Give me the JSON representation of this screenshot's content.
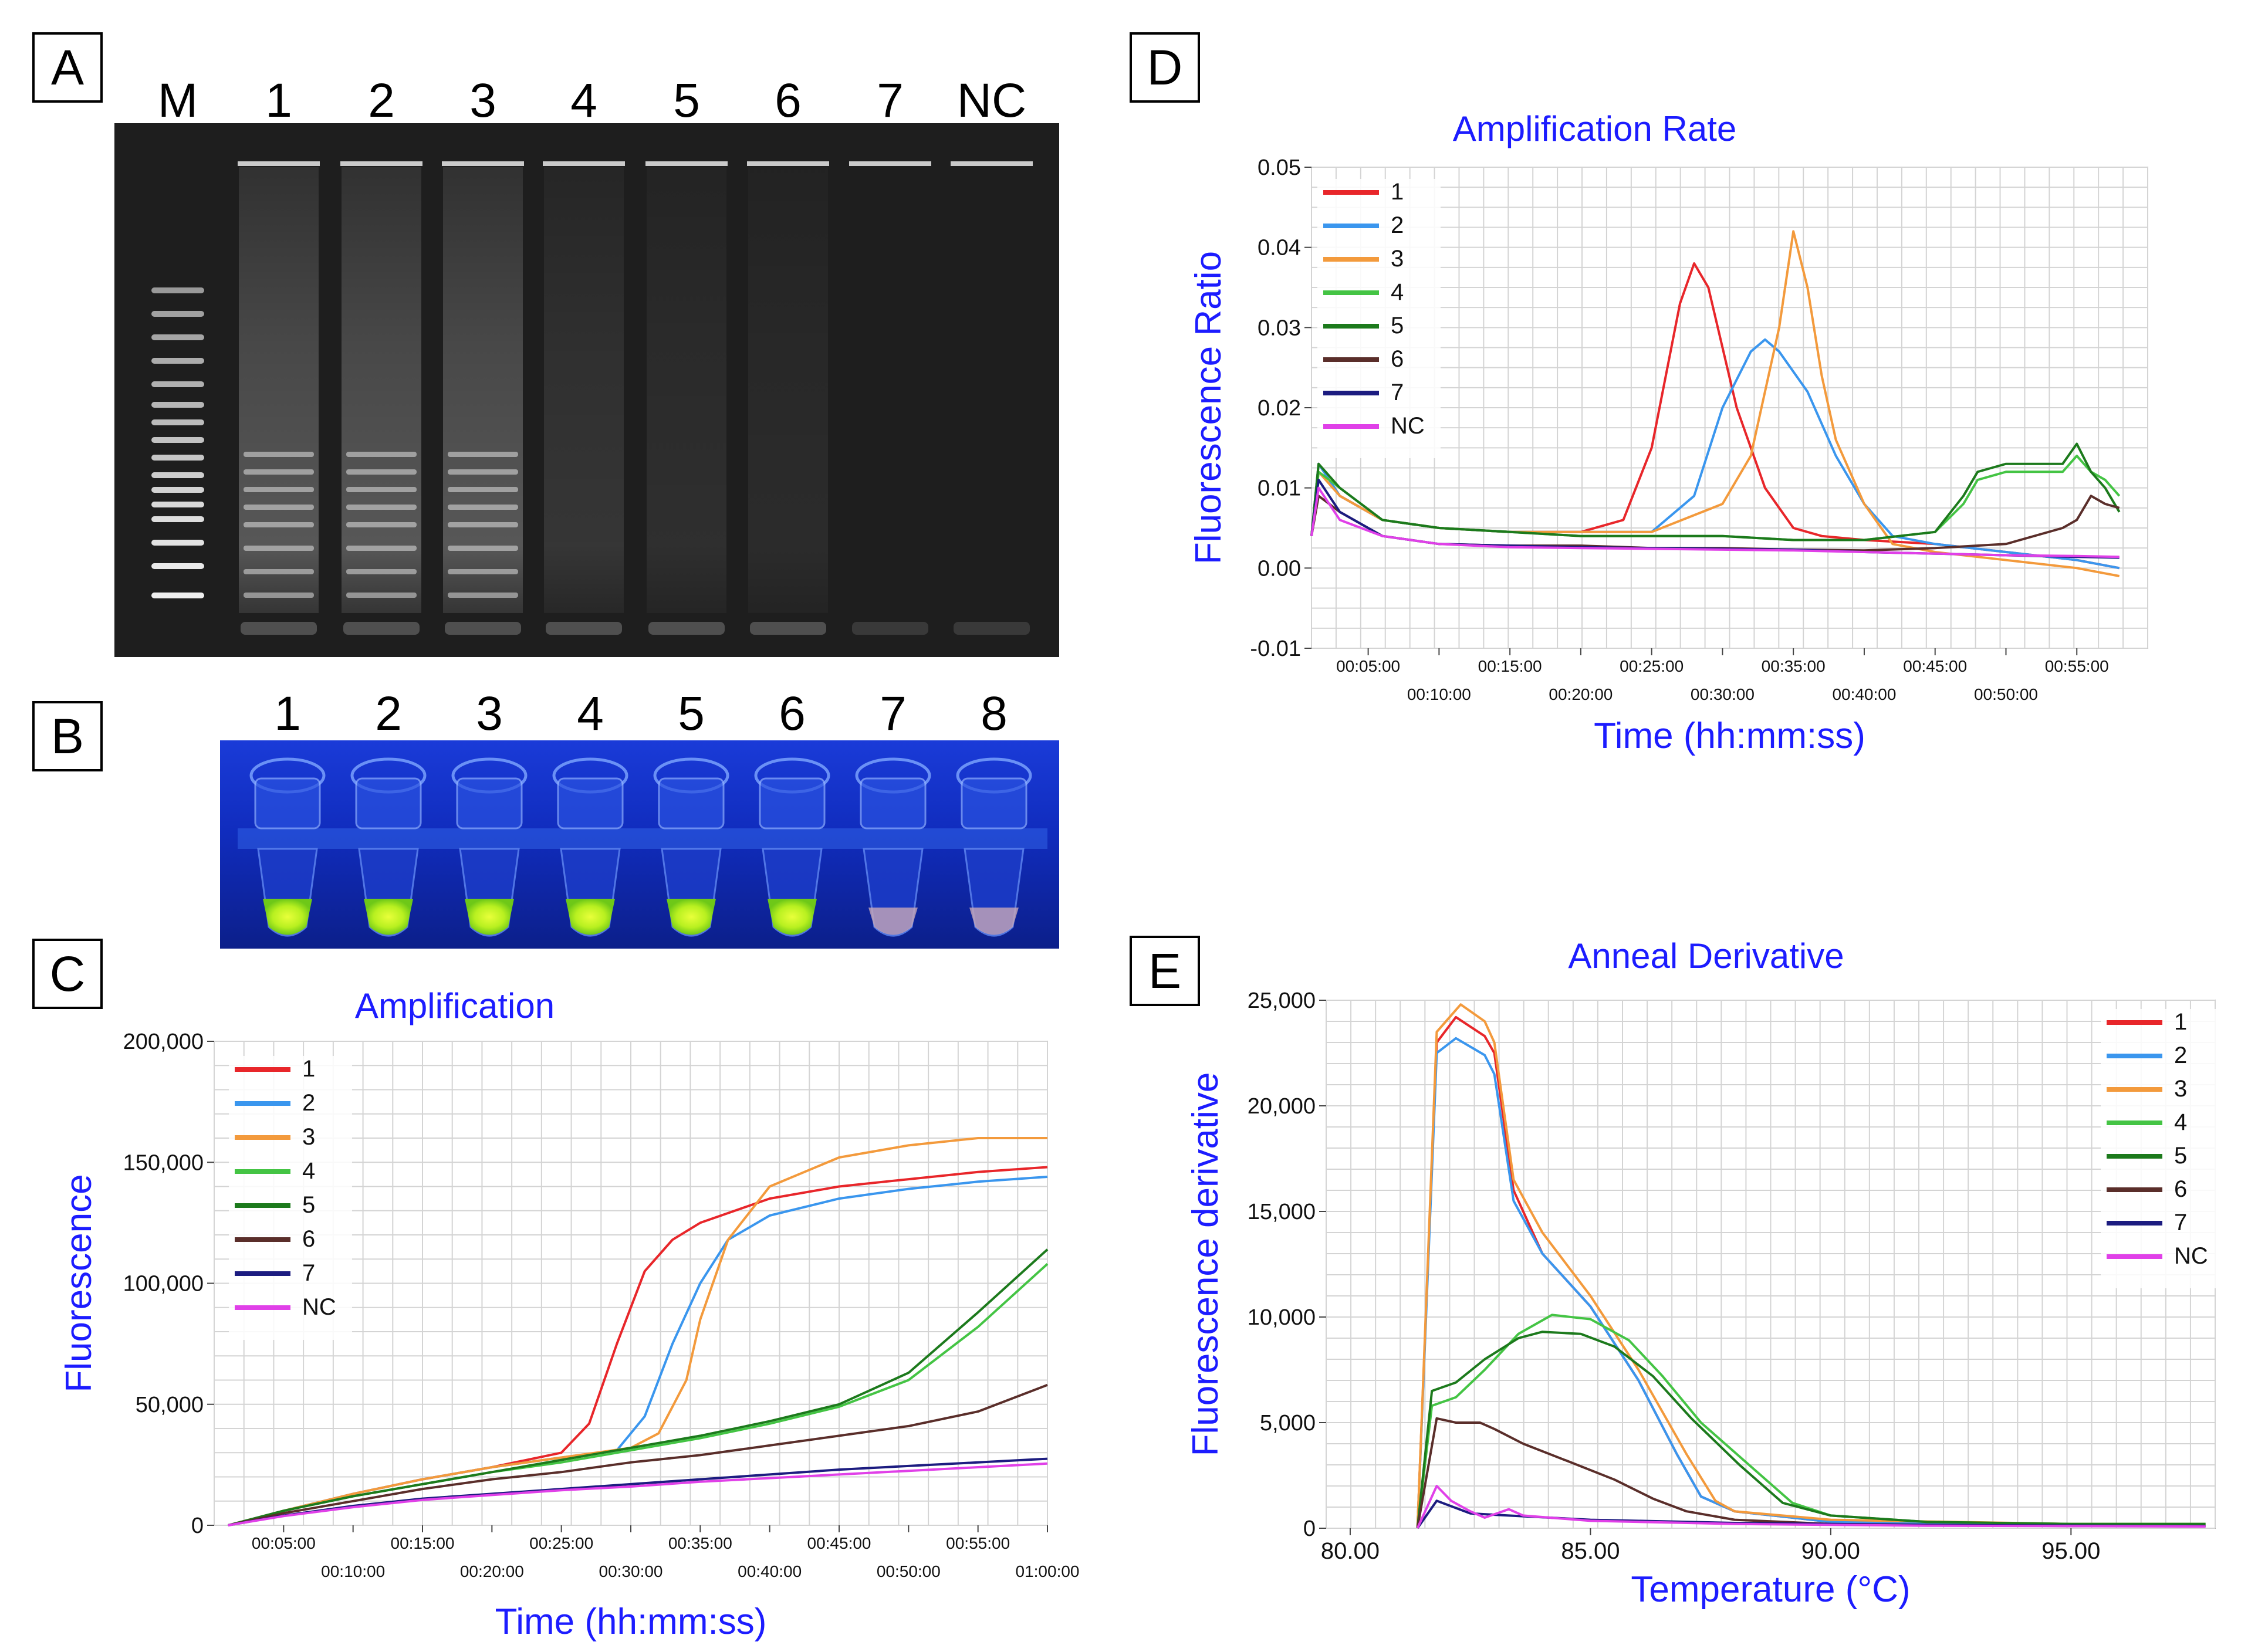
{
  "panels": {
    "a": "A",
    "b": "B",
    "c": "C",
    "d": "D",
    "e": "E"
  },
  "gel": {
    "lanes": [
      "M",
      "1",
      "2",
      "3",
      "4",
      "5",
      "6",
      "7",
      "NC"
    ],
    "intensity": [
      1.0,
      0.85,
      0.85,
      0.85,
      0.35,
      0.25,
      0.2,
      0.0,
      0.0
    ]
  },
  "tubes": {
    "labels": [
      "1",
      "2",
      "3",
      "4",
      "5",
      "6",
      "7",
      "8"
    ],
    "positive": [
      true,
      true,
      true,
      true,
      true,
      true,
      false,
      false
    ]
  },
  "colors": {
    "1": "#e8262a",
    "2": "#3a96ee",
    "3": "#f39a3c",
    "4": "#44c444",
    "5": "#1c7a1c",
    "6": "#5a2e2a",
    "7": "#1c1c80",
    "NC": "#e040e8",
    "title": "#1c1cff"
  },
  "chart_data": [
    {
      "id": "C",
      "type": "line",
      "title": "Amplification",
      "xlabel": "Time (hh:mm:ss)",
      "ylabel": "Fluorescence",
      "xlim": [
        0,
        60
      ],
      "ylim": [
        0,
        200000
      ],
      "x_ticks_upper": [
        "00:05:00",
        "00:15:00",
        "00:25:00",
        "00:35:00",
        "00:45:00",
        "00:55:00"
      ],
      "x_ticks_lower": [
        "00:10:00",
        "00:20:00",
        "00:30:00",
        "00:40:00",
        "00:50:00",
        "01:00:00"
      ],
      "y_ticks": [
        "0",
        "50,000",
        "100,000",
        "150,000",
        "200,000"
      ],
      "legend": [
        "1",
        "2",
        "3",
        "4",
        "5",
        "6",
        "7",
        "NC"
      ],
      "series": [
        {
          "name": "1",
          "x": [
            1,
            5,
            10,
            15,
            20,
            25,
            27,
            29,
            31,
            33,
            35,
            40,
            45,
            50,
            55,
            60
          ],
          "y": [
            0,
            6000,
            13000,
            19000,
            24000,
            30000,
            42000,
            75000,
            105000,
            118000,
            125000,
            135000,
            140000,
            143000,
            146000,
            148000
          ]
        },
        {
          "name": "2",
          "x": [
            1,
            5,
            10,
            15,
            20,
            25,
            29,
            31,
            33,
            35,
            37,
            40,
            45,
            50,
            55,
            60
          ],
          "y": [
            0,
            6000,
            13000,
            19000,
            24000,
            28000,
            31000,
            45000,
            75000,
            100000,
            118000,
            128000,
            135000,
            139000,
            142000,
            144000
          ]
        },
        {
          "name": "3",
          "x": [
            1,
            5,
            10,
            15,
            20,
            25,
            30,
            32,
            34,
            35,
            37,
            40,
            45,
            50,
            55,
            60
          ],
          "y": [
            0,
            6000,
            13000,
            19000,
            24000,
            28000,
            32000,
            38000,
            60000,
            85000,
            118000,
            140000,
            152000,
            157000,
            160000,
            160000
          ]
        },
        {
          "name": "4",
          "x": [
            1,
            5,
            10,
            15,
            20,
            25,
            30,
            35,
            40,
            45,
            50,
            55,
            60
          ],
          "y": [
            0,
            6000,
            12000,
            17000,
            22000,
            26000,
            31000,
            36000,
            42000,
            49000,
            60000,
            82000,
            108000
          ]
        },
        {
          "name": "5",
          "x": [
            1,
            5,
            10,
            15,
            20,
            25,
            30,
            35,
            40,
            45,
            50,
            55,
            60
          ],
          "y": [
            0,
            6000,
            12000,
            17000,
            22000,
            27000,
            32000,
            37000,
            43000,
            50000,
            63000,
            88000,
            114000
          ]
        },
        {
          "name": "6",
          "x": [
            1,
            5,
            10,
            15,
            20,
            25,
            30,
            35,
            40,
            45,
            50,
            55,
            60
          ],
          "y": [
            0,
            5000,
            10000,
            15000,
            19000,
            22000,
            26000,
            29000,
            33000,
            37000,
            41000,
            47000,
            58000
          ]
        },
        {
          "name": "7",
          "x": [
            1,
            5,
            10,
            15,
            20,
            25,
            30,
            35,
            40,
            45,
            50,
            55,
            60
          ],
          "y": [
            0,
            4000,
            8000,
            11000,
            13000,
            15000,
            17000,
            19000,
            21000,
            23000,
            24500,
            26000,
            27500
          ]
        },
        {
          "name": "NC",
          "x": [
            1,
            5,
            10,
            15,
            20,
            25,
            30,
            35,
            40,
            45,
            50,
            55,
            60
          ],
          "y": [
            0,
            3800,
            7500,
            10500,
            12500,
            14500,
            16000,
            18000,
            19500,
            21000,
            22500,
            24000,
            25500
          ]
        }
      ]
    },
    {
      "id": "D",
      "type": "line",
      "title": "Amplification Rate",
      "xlabel": "Time (hh:mm:ss)",
      "ylabel": "Fluorescence Ratio",
      "xlim": [
        1,
        60
      ],
      "ylim": [
        -0.01,
        0.05
      ],
      "x_ticks_upper": [
        "00:05:00",
        "00:15:00",
        "00:25:00",
        "00:35:00",
        "00:45:00",
        "00:55:00"
      ],
      "x_ticks_lower": [
        "00:10:00",
        "00:20:00",
        "00:30:00",
        "00:40:00",
        "00:50:00"
      ],
      "y_ticks": [
        "-0.01",
        "0.00",
        "0.01",
        "0.02",
        "0.03",
        "0.04",
        "0.05"
      ],
      "legend": [
        "1",
        "2",
        "3",
        "4",
        "5",
        "6",
        "7",
        "NC"
      ],
      "series": [
        {
          "name": "1",
          "x": [
            1,
            1.5,
            3,
            6,
            10,
            15,
            20,
            23,
            25,
            27,
            28,
            29,
            31,
            33,
            35,
            37,
            40,
            45,
            50,
            55,
            58
          ],
          "y": [
            0.004,
            0.013,
            0.009,
            0.006,
            0.005,
            0.0045,
            0.0045,
            0.006,
            0.015,
            0.033,
            0.038,
            0.035,
            0.02,
            0.01,
            0.005,
            0.004,
            0.0035,
            0.003,
            0.002,
            0.001,
            0.0
          ]
        },
        {
          "name": "2",
          "x": [
            1,
            1.5,
            3,
            6,
            10,
            15,
            20,
            25,
            28,
            30,
            32,
            33,
            34,
            36,
            38,
            40,
            42,
            45,
            50,
            55,
            58
          ],
          "y": [
            0.004,
            0.013,
            0.009,
            0.006,
            0.005,
            0.0045,
            0.0045,
            0.0045,
            0.009,
            0.02,
            0.027,
            0.0285,
            0.027,
            0.022,
            0.014,
            0.008,
            0.004,
            0.003,
            0.002,
            0.001,
            0.0
          ]
        },
        {
          "name": "3",
          "x": [
            1,
            1.5,
            3,
            6,
            10,
            15,
            20,
            25,
            30,
            32,
            34,
            35,
            36,
            37,
            38,
            40,
            42,
            45,
            50,
            55,
            58
          ],
          "y": [
            0.004,
            0.012,
            0.009,
            0.006,
            0.005,
            0.0045,
            0.0045,
            0.0045,
            0.008,
            0.014,
            0.03,
            0.042,
            0.035,
            0.024,
            0.016,
            0.008,
            0.003,
            0.002,
            0.001,
            0.0,
            -0.001
          ]
        },
        {
          "name": "4",
          "x": [
            1,
            1.5,
            3,
            6,
            10,
            15,
            20,
            25,
            30,
            35,
            40,
            45,
            47,
            48,
            49,
            50,
            52,
            54,
            55,
            56,
            57,
            58
          ],
          "y": [
            0.004,
            0.012,
            0.01,
            0.006,
            0.005,
            0.0045,
            0.004,
            0.004,
            0.004,
            0.0035,
            0.0035,
            0.0045,
            0.008,
            0.011,
            0.0115,
            0.012,
            0.012,
            0.012,
            0.014,
            0.012,
            0.011,
            0.009
          ]
        },
        {
          "name": "5",
          "x": [
            1,
            1.5,
            3,
            6,
            10,
            15,
            20,
            25,
            30,
            35,
            40,
            45,
            47,
            48,
            49,
            50,
            52,
            54,
            55,
            56,
            57,
            58
          ],
          "y": [
            0.004,
            0.013,
            0.01,
            0.006,
            0.005,
            0.0045,
            0.004,
            0.004,
            0.004,
            0.0035,
            0.0035,
            0.0045,
            0.009,
            0.012,
            0.0125,
            0.013,
            0.013,
            0.013,
            0.0155,
            0.012,
            0.01,
            0.007
          ]
        },
        {
          "name": "6",
          "x": [
            1,
            1.5,
            3,
            6,
            10,
            15,
            20,
            25,
            30,
            35,
            40,
            45,
            50,
            54,
            55,
            56,
            57,
            58
          ],
          "y": [
            0.004,
            0.009,
            0.007,
            0.004,
            0.003,
            0.0028,
            0.0028,
            0.0025,
            0.0025,
            0.0023,
            0.0022,
            0.0025,
            0.003,
            0.005,
            0.006,
            0.009,
            0.008,
            0.0075
          ]
        },
        {
          "name": "7",
          "x": [
            1,
            1.5,
            3,
            6,
            10,
            15,
            20,
            25,
            30,
            35,
            40,
            45,
            50,
            55,
            58
          ],
          "y": [
            0.004,
            0.011,
            0.007,
            0.004,
            0.003,
            0.0028,
            0.0026,
            0.0025,
            0.0024,
            0.0023,
            0.002,
            0.0018,
            0.0016,
            0.0014,
            0.0013
          ]
        },
        {
          "name": "NC",
          "x": [
            1,
            1.5,
            3,
            6,
            10,
            15,
            20,
            25,
            30,
            35,
            40,
            45,
            50,
            55,
            58
          ],
          "y": [
            0.004,
            0.01,
            0.006,
            0.004,
            0.003,
            0.0026,
            0.0025,
            0.0024,
            0.0023,
            0.0022,
            0.002,
            0.0018,
            0.0016,
            0.0015,
            0.0014
          ]
        }
      ]
    },
    {
      "id": "E",
      "type": "line",
      "title": "Anneal Derivative",
      "xlabel": "Temperature (°C)",
      "ylabel": "Fluorescence derivative",
      "xlim": [
        79.5,
        98
      ],
      "ylim": [
        0,
        25000
      ],
      "x_ticks": [
        "80.00",
        "85.00",
        "90.00",
        "95.00"
      ],
      "y_ticks": [
        "0",
        "5,000",
        "10,000",
        "15,000",
        "20,000",
        "25,000"
      ],
      "legend": [
        "1",
        "2",
        "3",
        "4",
        "5",
        "6",
        "7",
        "NC"
      ],
      "series": [
        {
          "name": "1",
          "x": [
            81.4,
            81.8,
            82.2,
            82.8,
            83.0,
            83.4,
            84,
            85,
            86,
            86.8,
            87.3,
            88,
            90,
            95,
            97.8
          ],
          "y": [
            0,
            23000,
            24200,
            23300,
            22500,
            16000,
            13000,
            10500,
            7000,
            3500,
            1500,
            800,
            300,
            100,
            100
          ]
        },
        {
          "name": "2",
          "x": [
            81.4,
            81.8,
            82.2,
            82.8,
            83.0,
            83.4,
            84,
            85,
            86,
            86.8,
            87.3,
            88,
            90,
            95,
            97.8
          ],
          "y": [
            0,
            22500,
            23200,
            22400,
            21500,
            15500,
            13000,
            10500,
            7000,
            3500,
            1500,
            800,
            300,
            100,
            100
          ]
        },
        {
          "name": "3",
          "x": [
            81.4,
            81.8,
            82.3,
            82.8,
            83.0,
            83.4,
            84,
            85,
            86,
            87,
            87.6,
            88,
            90,
            95,
            97.8
          ],
          "y": [
            0,
            23500,
            24800,
            24000,
            23000,
            16500,
            14000,
            11000,
            7500,
            3500,
            1300,
            800,
            400,
            200,
            200
          ]
        },
        {
          "name": "4",
          "x": [
            81.4,
            81.7,
            82.2,
            82.8,
            83.5,
            84.2,
            85,
            85.8,
            86.5,
            87.3,
            88.3,
            89.2,
            90,
            92,
            95,
            97.8
          ],
          "y": [
            0,
            5800,
            6200,
            7500,
            9200,
            10100,
            9900,
            8900,
            7200,
            5000,
            3000,
            1200,
            600,
            300,
            200,
            200
          ]
        },
        {
          "name": "5",
          "x": [
            81.4,
            81.7,
            82.2,
            82.8,
            83.5,
            84.0,
            84.8,
            85.5,
            86.3,
            87.1,
            88.1,
            89.0,
            90,
            92,
            95,
            97.8
          ],
          "y": [
            0,
            6500,
            6900,
            8000,
            9000,
            9300,
            9200,
            8600,
            7200,
            5200,
            3000,
            1200,
            600,
            300,
            200,
            200
          ]
        },
        {
          "name": "6",
          "x": [
            81.4,
            81.8,
            82.2,
            82.7,
            83,
            83.6,
            84.5,
            85.5,
            86.3,
            87,
            88,
            90,
            95,
            97.8
          ],
          "y": [
            0,
            5200,
            5000,
            5000,
            4700,
            4000,
            3200,
            2300,
            1400,
            800,
            400,
            200,
            100,
            100
          ]
        },
        {
          "name": "7",
          "x": [
            81.4,
            81.8,
            82.5,
            83.3,
            85,
            88,
            92,
            97.8
          ],
          "y": [
            0,
            1300,
            700,
            600,
            400,
            250,
            150,
            100
          ]
        },
        {
          "name": "NC",
          "x": [
            81.4,
            81.8,
            82.1,
            82.5,
            82.8,
            83.3,
            83.6,
            85,
            88,
            92,
            97.8
          ],
          "y": [
            0,
            2000,
            1300,
            800,
            500,
            900,
            600,
            350,
            200,
            120,
            80
          ]
        }
      ]
    }
  ]
}
